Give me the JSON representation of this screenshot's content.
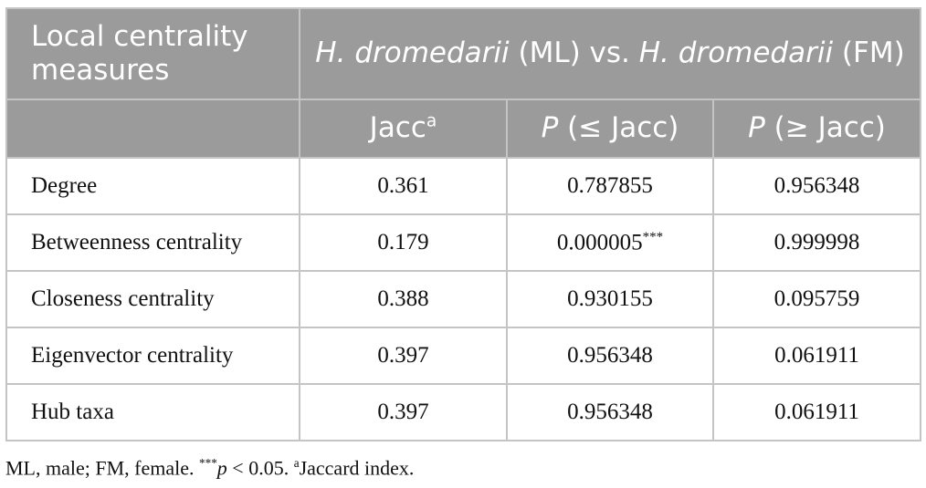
{
  "header": {
    "row_label": "Local centrality measures",
    "group": [
      "H. dromedarii",
      " (ML) vs. ",
      "H. dromedarii",
      " (FM)"
    ],
    "columns": [
      [
        "Jacc",
        "a"
      ],
      [
        "P",
        " (≤ Jacc)"
      ],
      [
        "P",
        " (≥ Jacc)"
      ]
    ]
  },
  "table": {
    "rows": [
      [
        "Degree",
        "0.361",
        "0.787855",
        "0.956348"
      ],
      [
        "Betweenness centrality",
        "0.179",
        [
          "0.000005",
          "***"
        ],
        "0.999998"
      ],
      [
        "Closeness centrality",
        "0.388",
        "0.930155",
        "0.095759"
      ],
      [
        "Eigenvector centrality",
        "0.397",
        "0.956348",
        "0.061911"
      ],
      [
        "Hub taxa",
        "0.397",
        "0.956348",
        "0.061911"
      ]
    ]
  },
  "footnote": [
    "ML, male; FM, female. ",
    "***",
    "p",
    " < 0.05. ",
    "a",
    "Jaccard index."
  ]
}
